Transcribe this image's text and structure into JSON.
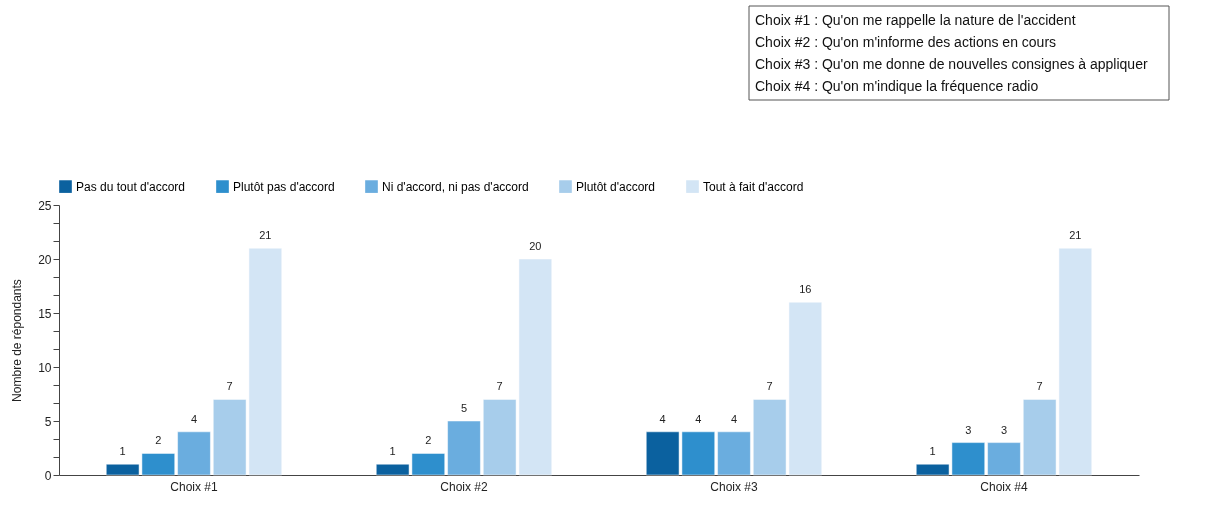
{
  "chart_data": {
    "type": "bar",
    "categories": [
      "Choix #1",
      "Choix #2",
      "Choix #3",
      "Choix #4"
    ],
    "series": [
      {
        "name": "Pas du tout d'accord",
        "color": "#0b619f",
        "values": [
          1,
          1,
          4,
          1
        ]
      },
      {
        "name": "Plutôt pas d'accord",
        "color": "#2e8fcd",
        "values": [
          2,
          2,
          4,
          3
        ]
      },
      {
        "name": "Ni d'accord, ni pas d'accord",
        "color": "#6aaddf",
        "values": [
          4,
          5,
          4,
          3
        ]
      },
      {
        "name": "Plutôt d'accord",
        "color": "#a7cdeb",
        "values": [
          7,
          7,
          7,
          7
        ]
      },
      {
        "name": "Tout à fait d'accord",
        "color": "#d3e5f5",
        "values": [
          21,
          20,
          16,
          21
        ]
      }
    ],
    "ylabel": "Nombre de répondants",
    "ylim": [
      0,
      25
    ],
    "yticks": [
      0,
      {
        "value": 1.67,
        "label": null
      },
      {
        "value": 3.33,
        "label": null
      },
      5,
      {
        "value": 6.67,
        "label": null
      },
      {
        "value": 8.33,
        "label": null
      },
      10,
      {
        "value": 11.67,
        "label": null
      },
      {
        "value": 13.33,
        "label": null
      },
      15,
      {
        "value": 16.67,
        "label": null
      },
      {
        "value": 18.33,
        "label": null
      },
      20,
      {
        "value": 21.67,
        "label": null
      },
      {
        "value": 23.33,
        "label": null
      },
      25
    ],
    "data_labels": true,
    "legend": "top",
    "grid": false,
    "annotations": [
      "Choix #1 : Qu'on me rappelle la nature de l'accident",
      "Choix #2 : Qu'on m'informe des actions en cours",
      "Choix #3 : Qu'on me donne de nouvelles consignes à appliquer",
      "Choix #4 : Qu'on m'indique la fréquence radio"
    ]
  }
}
